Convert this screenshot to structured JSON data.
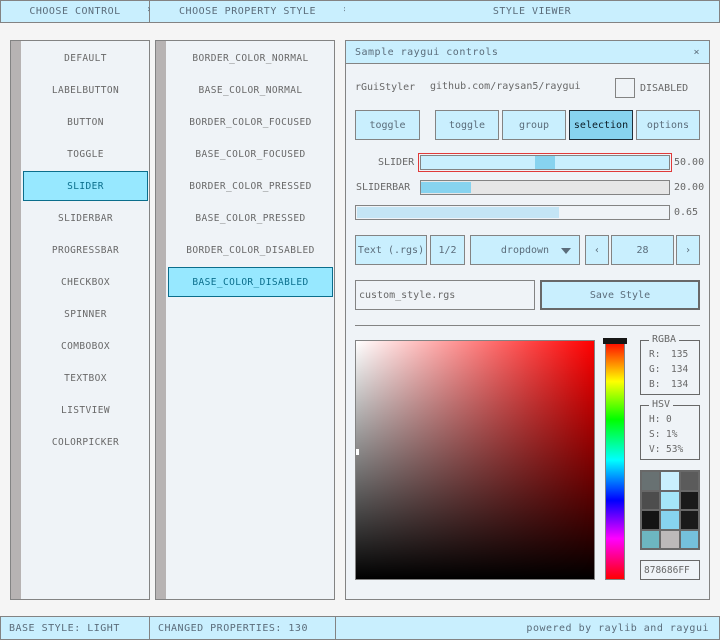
{
  "topbar": {
    "crumbs": [
      "CHOOSE CONTROL",
      "CHOOSE PROPERTY STYLE",
      "STYLE VIEWER"
    ],
    "separator": "›"
  },
  "controls": [
    "DEFAULT",
    "LABELBUTTON",
    "BUTTON",
    "TOGGLE",
    "SLIDER",
    "SLIDERBAR",
    "PROGRESSBAR",
    "CHECKBOX",
    "SPINNER",
    "COMBOBOX",
    "TEXTBOX",
    "LISTVIEW",
    "COLORPICKER"
  ],
  "selected_control": "SLIDER",
  "properties": [
    "BORDER_COLOR_NORMAL",
    "BASE_COLOR_NORMAL",
    "BORDER_COLOR_FOCUSED",
    "BASE_COLOR_FOCUSED",
    "BORDER_COLOR_PRESSED",
    "BASE_COLOR_PRESSED",
    "BORDER_COLOR_DISABLED",
    "BASE_COLOR_DISABLED"
  ],
  "selected_property": "BASE_COLOR_DISABLED",
  "window": {
    "title": "Sample raygui controls",
    "close": "×",
    "app_name": "rGuiStyler",
    "url": "github.com/raysan5/raygui",
    "disabled_label": "DISABLED",
    "disabled_checked": false,
    "toggle": "toggle",
    "group": [
      "toggle",
      "group",
      "selection",
      "options"
    ],
    "group_selected": "selection",
    "slider_label": "SLIDER",
    "slider_value": "50.00",
    "slider_fraction": 0.5,
    "sliderbar_label": "SLIDERBAR",
    "sliderbar_value": "20.00",
    "sliderbar_fraction": 0.2,
    "progress_value": "0.65",
    "progress_fraction": 0.65,
    "text_button": "Text (.rgs)",
    "page_button": "1/2",
    "dropdown": "dropdown",
    "spinner_prev": "‹",
    "spinner_value": "28",
    "spinner_next": "›",
    "textbox_value": "custom_style.rgs",
    "save_button": "Save Style",
    "rgba": {
      "title": "RGBA",
      "r_label": "R:",
      "r": "135",
      "g_label": "G:",
      "g": "134",
      "b_label": "B:",
      "b": "134"
    },
    "hsv": {
      "title": "HSV",
      "h_label": "H:",
      "h": "0",
      "s_label": "S:",
      "s": "1%",
      "v_label": "V:",
      "v": "53%"
    },
    "hex": "878686FF",
    "picker_hue_color": "#ff0000",
    "palette": [
      "#687172",
      "#c9effe",
      "#5b5b5b",
      "#4d4d4d",
      "#a5e6f7",
      "#1a1a1a",
      "#141414",
      "#87d3ef",
      "#1a1a1a",
      "#6db6c0",
      "#bcb9b9",
      "#75c1dc"
    ]
  },
  "status": {
    "base_style": "BASE STYLE: LIGHT",
    "changed": "CHANGED PROPERTIES: 130",
    "powered": "powered by raylib and raygui"
  }
}
